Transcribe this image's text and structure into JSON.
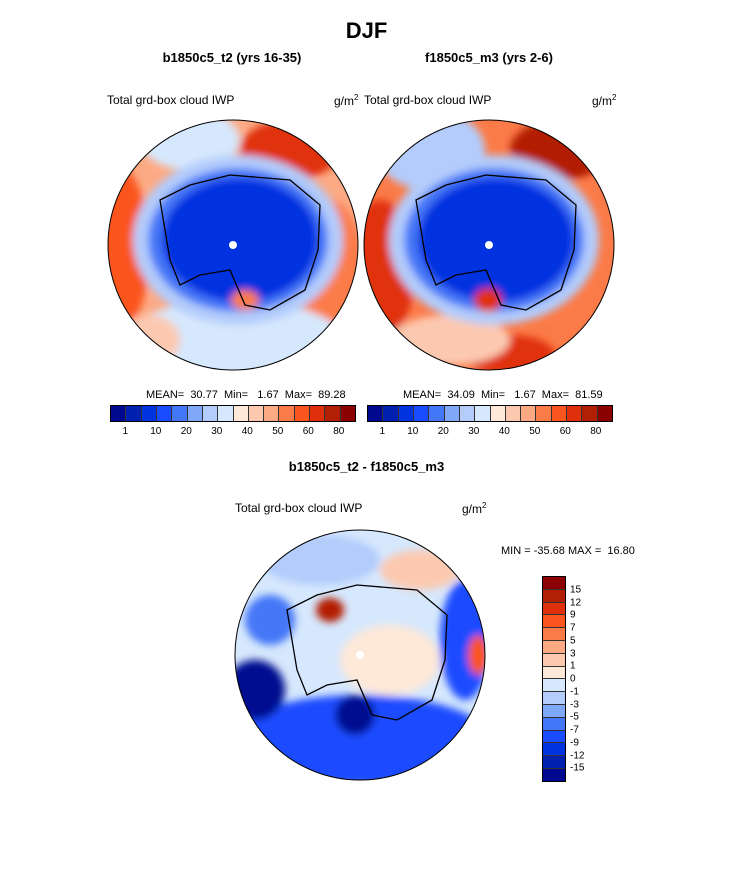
{
  "title": "DJF",
  "panels": [
    {
      "title": "b1850c5_t2 (yrs 16-35)",
      "variable": "Total grd-box cloud IWP",
      "units": "g/m",
      "units_sup": "2",
      "stats": "MEAN=  30.77  Min=   1.67  Max=  89.28"
    },
    {
      "title": "f1850c5_m3 (yrs 2-6)",
      "variable": "Total grd-box cloud IWP",
      "units": "g/m",
      "units_sup": "2",
      "stats": "MEAN=  34.09  Min=   1.67  Max=  81.59"
    }
  ],
  "diff": {
    "title": "b1850c5_t2 - f1850c5_m3",
    "variable": "Total grd-box cloud IWP",
    "units": "g/m",
    "units_sup": "2",
    "stats": "MIN = -35.68 MAX =  16.80"
  },
  "colorbar": {
    "colors": [
      "#000890",
      "#0021b0",
      "#0033e0",
      "#1a4cff",
      "#4477f7",
      "#80a8fa",
      "#b3ccfb",
      "#d6e8fd",
      "#fee8d8",
      "#fcc9b0",
      "#fcaa84",
      "#fb7b48",
      "#fa541f",
      "#e0300b",
      "#b21f04",
      "#8b0000"
    ],
    "labels": [
      "1",
      "10",
      "20",
      "30",
      "40",
      "50",
      "60",
      "80"
    ]
  },
  "diff_colorbar": {
    "labels": [
      "15",
      "12",
      "9",
      "7",
      "5",
      "3",
      "1",
      "0",
      "-1",
      "-3",
      "-5",
      "-7",
      "-9",
      "-12",
      "-15"
    ]
  }
}
